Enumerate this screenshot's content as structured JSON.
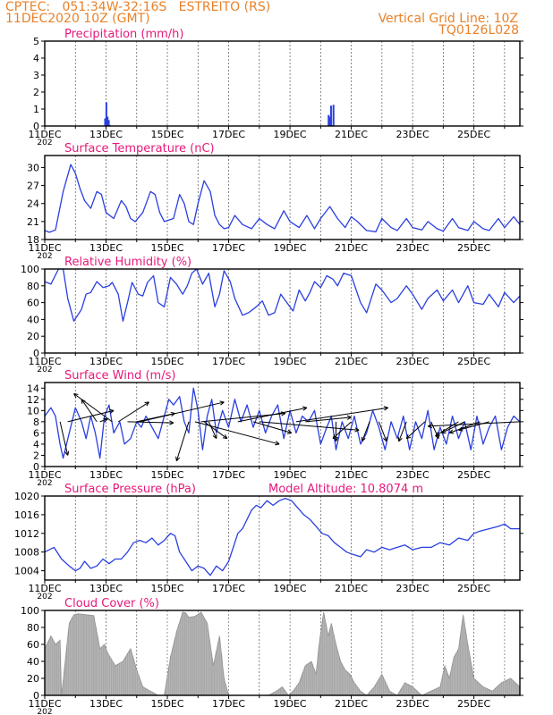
{
  "header": {
    "line1": "CPTEC:   051:34W-32:16S   ESTREITO (RS)",
    "line2": "11DEC2020 10Z (GMT)",
    "grid_note": "Vertical Grid Line: 10Z",
    "code": "TQ0126L028",
    "color": "#e8822a"
  },
  "colors": {
    "title": "#e6197a",
    "line": "#2a3fe0",
    "bar": "#2a3fe0",
    "cloud": "#a8a8a8"
  },
  "x_axis": {
    "labels": [
      "11DEC",
      "13DEC",
      "15DEC",
      "17DEC",
      "19DEC",
      "21DEC",
      "23DEC",
      "25DEC"
    ],
    "year_fragment": "202"
  },
  "chart_data": [
    {
      "type": "bar",
      "title": "Precipitation (mm/h)",
      "ylim": [
        0,
        5
      ],
      "yticks": [
        0,
        1,
        2,
        3,
        4,
        5
      ],
      "x_range_days": [
        0,
        15.5
      ],
      "x": [
        1.97,
        2.01,
        2.05,
        2.09,
        2.13,
        9.26,
        9.3,
        9.34,
        9.38,
        9.42
      ],
      "values": [
        0.45,
        1.4,
        0.55,
        0.35,
        0.05,
        0.65,
        0.55,
        1.2,
        0.05,
        1.25
      ]
    },
    {
      "type": "line",
      "title": "Surface Temperature (nC)",
      "ylim": [
        18,
        32
      ],
      "yticks": [
        18,
        21,
        24,
        27,
        30
      ],
      "x": [
        0,
        0.15,
        0.35,
        0.6,
        0.85,
        1.0,
        1.15,
        1.3,
        1.5,
        1.7,
        1.85,
        2.0,
        2.25,
        2.5,
        2.65,
        2.8,
        2.95,
        3.2,
        3.45,
        3.6,
        3.75,
        3.9,
        4.2,
        4.4,
        4.55,
        4.7,
        4.85,
        5.0,
        5.2,
        5.4,
        5.55,
        5.7,
        5.85,
        6.0,
        6.2,
        6.45,
        6.75,
        7.0,
        7.25,
        7.5,
        7.8,
        8.0,
        8.3,
        8.55,
        8.8,
        9.0,
        9.3,
        9.55,
        9.8,
        10.0,
        10.2,
        10.5,
        10.8,
        11.0,
        11.3,
        11.5,
        11.8,
        12.0,
        12.3,
        12.5,
        12.8,
        13.0,
        13.3,
        13.5,
        13.8,
        14.0,
        14.3,
        14.5,
        14.8,
        15.0,
        15.3,
        15.5
      ],
      "values": [
        19.5,
        19.2,
        19.6,
        26.0,
        30.5,
        29.0,
        26.5,
        24.5,
        23.2,
        26.0,
        25.5,
        22.5,
        21.5,
        24.5,
        23.5,
        21.5,
        21.0,
        22.5,
        26.0,
        25.5,
        22.5,
        21.0,
        21.5,
        25.5,
        24.0,
        21.0,
        20.5,
        24.0,
        27.8,
        26.0,
        22.0,
        20.5,
        19.8,
        20.0,
        22.0,
        20.5,
        19.8,
        21.5,
        20.5,
        19.8,
        22.8,
        21.0,
        20.0,
        22.0,
        19.8,
        21.5,
        23.5,
        21.5,
        20.0,
        21.8,
        21.0,
        19.5,
        19.3,
        21.5,
        20.0,
        19.5,
        21.5,
        20.0,
        19.6,
        21.0,
        19.8,
        19.4,
        21.5,
        20.0,
        19.5,
        21.0,
        19.8,
        19.5,
        21.5,
        20.0,
        21.8,
        20.5
      ]
    },
    {
      "type": "line",
      "title": "Relative Humidity (%)",
      "ylim": [
        0,
        100
      ],
      "yticks": [
        0,
        20,
        40,
        60,
        80,
        100
      ],
      "x": [
        0,
        0.2,
        0.45,
        0.6,
        0.75,
        0.95,
        1.2,
        1.35,
        1.5,
        1.7,
        1.9,
        2.1,
        2.2,
        2.4,
        2.55,
        2.7,
        2.85,
        3.05,
        3.2,
        3.35,
        3.55,
        3.7,
        3.9,
        4.1,
        4.3,
        4.5,
        4.65,
        4.8,
        4.95,
        5.15,
        5.35,
        5.55,
        5.7,
        5.85,
        6.05,
        6.2,
        6.45,
        6.65,
        6.9,
        7.1,
        7.3,
        7.5,
        7.7,
        7.9,
        8.1,
        8.3,
        8.5,
        8.65,
        8.8,
        9.0,
        9.2,
        9.4,
        9.55,
        9.75,
        10.0,
        10.3,
        10.5,
        10.8,
        11.0,
        11.3,
        11.5,
        11.8,
        12.0,
        12.3,
        12.5,
        12.8,
        13.0,
        13.3,
        13.5,
        13.8,
        14.0,
        14.3,
        14.5,
        14.8,
        15.0,
        15.3,
        15.5
      ],
      "values": [
        85,
        82,
        100,
        100,
        65,
        38,
        52,
        70,
        72,
        85,
        78,
        80,
        84,
        70,
        38,
        60,
        84,
        70,
        68,
        84,
        92,
        60,
        55,
        90,
        82,
        70,
        80,
        95,
        100,
        82,
        95,
        55,
        70,
        98,
        85,
        65,
        45,
        48,
        55,
        62,
        45,
        48,
        70,
        60,
        50,
        75,
        62,
        72,
        85,
        78,
        92,
        88,
        80,
        95,
        92,
        60,
        48,
        82,
        75,
        60,
        65,
        80,
        70,
        52,
        65,
        75,
        62,
        75,
        60,
        80,
        60,
        58,
        70,
        55,
        72,
        60,
        68
      ]
    },
    {
      "type": "line",
      "title": "Surface Wind (m/s)",
      "ylim": [
        0,
        15
      ],
      "yticks": [
        0,
        2,
        4,
        6,
        8,
        10,
        12,
        14
      ],
      "x": [
        0,
        0.2,
        0.35,
        0.5,
        0.6,
        0.8,
        1.0,
        1.2,
        1.35,
        1.5,
        1.65,
        1.8,
        1.95,
        2.1,
        2.25,
        2.45,
        2.6,
        2.8,
        3.0,
        3.15,
        3.3,
        3.5,
        3.7,
        3.85,
        4.05,
        4.2,
        4.4,
        4.55,
        4.7,
        4.85,
        5.0,
        5.15,
        5.3,
        5.45,
        5.6,
        5.8,
        6.0,
        6.2,
        6.4,
        6.6,
        6.8,
        7.0,
        7.2,
        7.4,
        7.6,
        7.8,
        8.0,
        8.2,
        8.4,
        8.6,
        8.8,
        9.0,
        9.2,
        9.35,
        9.5,
        9.7,
        9.9,
        10.1,
        10.3,
        10.5,
        10.7,
        10.9,
        11.1,
        11.3,
        11.5,
        11.7,
        11.9,
        12.1,
        12.3,
        12.5,
        12.7,
        12.9,
        13.1,
        13.3,
        13.5,
        13.7,
        13.9,
        14.1,
        14.3,
        14.5,
        14.7,
        14.9,
        15.1,
        15.3,
        15.5
      ],
      "values": [
        9,
        10.5,
        9,
        4,
        1.5,
        6,
        10.5,
        8,
        5,
        9,
        6,
        1.5,
        9,
        11,
        6,
        8,
        4,
        5,
        8,
        7,
        9,
        7,
        5,
        8,
        12,
        11,
        12.5,
        8,
        6,
        14,
        10,
        3,
        9,
        12,
        6,
        10,
        7,
        12,
        8,
        11,
        7,
        10,
        6,
        9,
        11,
        5,
        10,
        6,
        9,
        8,
        10,
        4,
        7,
        9,
        3,
        8,
        5,
        9,
        4,
        6,
        10,
        7,
        3,
        8,
        5,
        9,
        3,
        8,
        5,
        10,
        3,
        7,
        4,
        9,
        5,
        8,
        3,
        9,
        4,
        7,
        9,
        3,
        7,
        9,
        8
      ],
      "arrows": [
        {
          "x": 0.5,
          "u": 0.5,
          "v": -6
        },
        {
          "x": 0.75,
          "u": 3,
          "v": 2
        },
        {
          "x": 1.7,
          "u": -1,
          "v": 4
        },
        {
          "x": 1.8,
          "u": 0.5,
          "v": 0.5
        },
        {
          "x": 2.2,
          "u": -2.5,
          "v": 5
        },
        {
          "x": 2.4,
          "u": 2,
          "v": 3.5
        },
        {
          "x": 2.7,
          "u": 3,
          "v": -0.2
        },
        {
          "x": 3.0,
          "u": 2.5,
          "v": 1.5
        },
        {
          "x": 3.1,
          "u": 5.5,
          "v": 3.5
        },
        {
          "x": 4.7,
          "u": -0.8,
          "v": -7
        },
        {
          "x": 4.9,
          "u": 5.5,
          "v": -4
        },
        {
          "x": 5.1,
          "u": 5.5,
          "v": 1.5
        },
        {
          "x": 5.2,
          "u": 1.5,
          "v": -3
        },
        {
          "x": 5.35,
          "u": 0.5,
          "v": -3
        },
        {
          "x": 6.3,
          "u": 4.5,
          "v": 2.5
        },
        {
          "x": 6.8,
          "u": 2.5,
          "v": -2
        },
        {
          "x": 7.0,
          "u": 6.5,
          "v": -1.5
        },
        {
          "x": 8.2,
          "u": 6,
          "v": 2.5
        },
        {
          "x": 8.5,
          "u": 3,
          "v": 0.8
        },
        {
          "x": 9.5,
          "u": 0,
          "v": -3.5
        },
        {
          "x": 10.0,
          "u": -1.2,
          "v": -3
        },
        {
          "x": 10.6,
          "u": -0.5,
          "v": -3.5
        },
        {
          "x": 10.9,
          "u": 0.5,
          "v": -3.5
        },
        {
          "x": 11.8,
          "u": -0.5,
          "v": -3.5
        },
        {
          "x": 12.4,
          "u": -1.2,
          "v": -3
        },
        {
          "x": 12.6,
          "u": 0.5,
          "v": -3
        },
        {
          "x": 13.5,
          "u": -1.5,
          "v": -2.5
        },
        {
          "x": 13.7,
          "u": -1.5,
          "v": -2
        },
        {
          "x": 14.2,
          "u": -2,
          "v": -2
        },
        {
          "x": 14.5,
          "u": -2,
          "v": -1.5
        },
        {
          "x": 15.5,
          "u": -6,
          "v": -0.8
        }
      ]
    },
    {
      "type": "line",
      "title": "Surface Pressure (hPa)",
      "annotation": "Model Altitude: 10.8074 m",
      "ylim": [
        1002,
        1020
      ],
      "yticks": [
        1004,
        1008,
        1012,
        1016,
        1020
      ],
      "x": [
        0,
        0.3,
        0.55,
        0.8,
        1.0,
        1.15,
        1.3,
        1.5,
        1.7,
        1.9,
        2.1,
        2.3,
        2.5,
        2.7,
        2.9,
        3.1,
        3.3,
        3.5,
        3.7,
        3.9,
        4.1,
        4.25,
        4.4,
        4.6,
        4.8,
        5.0,
        5.2,
        5.4,
        5.6,
        5.8,
        6.0,
        6.15,
        6.3,
        6.45,
        6.6,
        6.75,
        6.9,
        7.05,
        7.25,
        7.45,
        7.65,
        7.85,
        8.05,
        8.25,
        8.45,
        8.65,
        8.85,
        9.05,
        9.25,
        9.45,
        9.65,
        9.85,
        10.05,
        10.3,
        10.5,
        10.75,
        11.0,
        11.25,
        11.5,
        11.75,
        12.0,
        12.3,
        12.6,
        12.9,
        13.2,
        13.5,
        13.8,
        14.0,
        14.2,
        14.5,
        14.8,
        15.0,
        15.2,
        15.5
      ],
      "values": [
        1008,
        1009,
        1006.5,
        1005,
        1004,
        1004.5,
        1006,
        1004.5,
        1005,
        1006.5,
        1005.5,
        1006.5,
        1006.5,
        1008,
        1010,
        1010.5,
        1010,
        1011,
        1009.5,
        1010.5,
        1012,
        1011.5,
        1008,
        1006,
        1004,
        1005,
        1004.5,
        1003,
        1005,
        1004,
        1006,
        1009,
        1012,
        1013,
        1015,
        1017,
        1018,
        1017.5,
        1019,
        1018,
        1019,
        1019.5,
        1019,
        1017.5,
        1016,
        1015,
        1013.5,
        1012,
        1011.5,
        1010,
        1009,
        1008,
        1007.5,
        1007,
        1008.5,
        1008,
        1009,
        1008.5,
        1009,
        1009.5,
        1008.5,
        1009,
        1009,
        1010,
        1009.5,
        1011,
        1010.5,
        1012,
        1012.5,
        1013,
        1013.5,
        1014,
        1013,
        1013
      ]
    },
    {
      "type": "area",
      "title": "Cloud Cover (%)",
      "ylim": [
        0,
        100
      ],
      "yticks": [
        0,
        20,
        40,
        60,
        80,
        100
      ],
      "x": [
        0,
        0.2,
        0.35,
        0.5,
        0.55,
        0.8,
        0.95,
        1.1,
        1.35,
        1.6,
        1.8,
        1.95,
        2.05,
        2.3,
        2.55,
        2.8,
        3.0,
        3.2,
        3.45,
        3.7,
        3.9,
        4.1,
        4.3,
        4.5,
        4.6,
        4.7,
        4.9,
        5.1,
        5.3,
        5.5,
        5.7,
        5.85,
        6.0,
        6.2,
        6.4,
        6.7,
        7.0,
        7.3,
        7.55,
        7.75,
        7.95,
        8.1,
        8.3,
        8.5,
        8.7,
        8.85,
        8.95,
        9.1,
        9.25,
        9.35,
        9.5,
        9.65,
        9.8,
        9.95,
        10.1,
        10.3,
        10.5,
        10.75,
        11.0,
        11.25,
        11.5,
        11.75,
        12.0,
        12.3,
        12.6,
        12.9,
        13.05,
        13.2,
        13.35,
        13.5,
        13.65,
        13.8,
        14.0,
        14.3,
        14.6,
        14.9,
        15.2,
        15.5
      ],
      "values": [
        55,
        70,
        60,
        65,
        0,
        85,
        95,
        96,
        95,
        94,
        55,
        60,
        50,
        35,
        40,
        55,
        30,
        10,
        5,
        0,
        0,
        45,
        75,
        98,
        97,
        92,
        93,
        98,
        85,
        35,
        70,
        20,
        0,
        0,
        0,
        0,
        0,
        0,
        5,
        10,
        0,
        5,
        15,
        35,
        40,
        25,
        60,
        98,
        70,
        85,
        60,
        40,
        30,
        25,
        15,
        5,
        0,
        10,
        25,
        5,
        0,
        15,
        10,
        0,
        5,
        10,
        35,
        20,
        45,
        55,
        95,
        60,
        20,
        10,
        5,
        15,
        20,
        10
      ]
    }
  ]
}
